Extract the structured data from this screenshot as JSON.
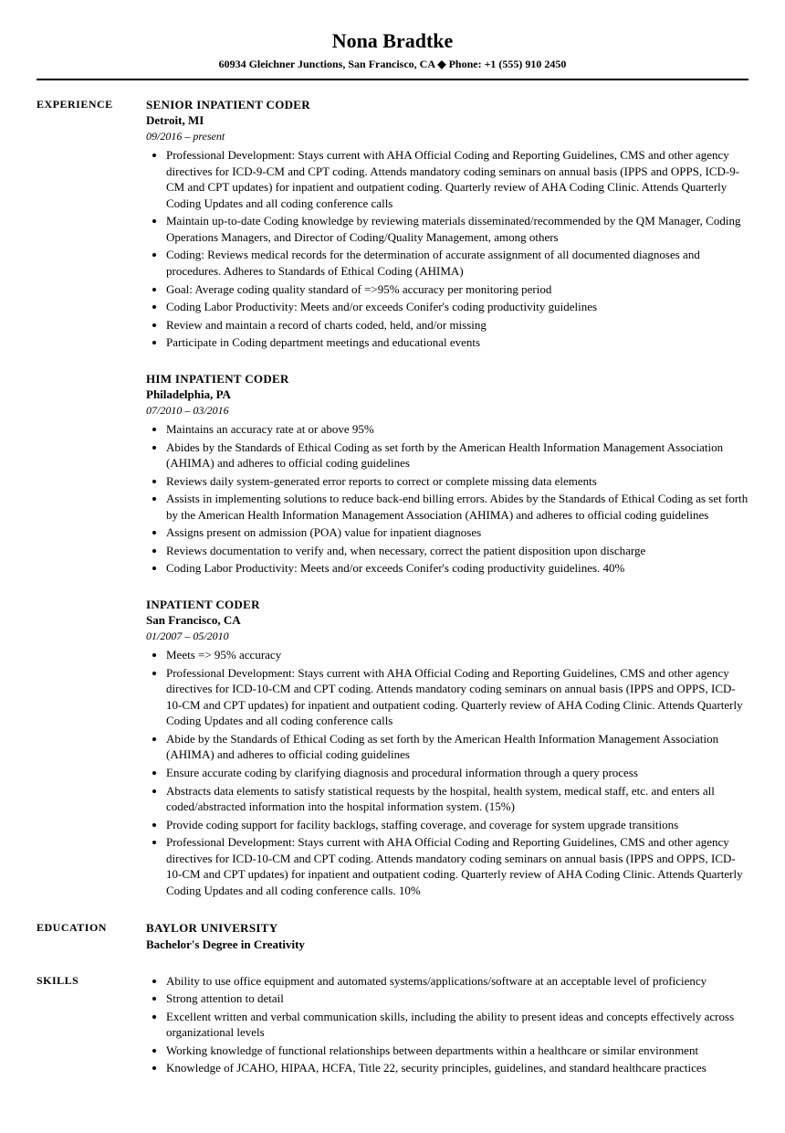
{
  "header": {
    "name": "Nona Bradtke",
    "contact": "60934 Gleichner Junctions, San Francisco, CA  ◆  Phone: +1 (555) 910 2450"
  },
  "sections": {
    "experience_label": "EXPERIENCE",
    "education_label": "EDUCATION",
    "skills_label": "SKILLS"
  },
  "jobs": [
    {
      "title": "SENIOR INPATIENT CODER",
      "location": "Detroit, MI",
      "dates": "09/2016 – present",
      "bullets": [
        "Professional Development: Stays current with AHA Official Coding and Reporting Guidelines, CMS and other agency directives for ICD-9-CM and CPT coding. Attends mandatory coding seminars on annual basis (IPPS and OPPS, ICD-9-CM and CPT updates) for inpatient and outpatient coding. Quarterly review of AHA Coding Clinic. Attends Quarterly Coding Updates and all coding conference calls",
        "Maintain up-to-date Coding knowledge by reviewing materials disseminated/recommended by the QM Manager, Coding Operations Managers, and Director of Coding/Quality Management, among others",
        "Coding: Reviews medical records for the determination of accurate assignment of all documented diagnoses and procedures. Adheres to Standards of Ethical Coding (AHIMA)",
        "Goal: Average coding quality standard of =>95% accuracy per monitoring period",
        "Coding Labor Productivity: Meets and/or exceeds Conifer's coding productivity guidelines",
        "Review and maintain a record of charts coded, held, and/or missing",
        "Participate in Coding department meetings and educational events"
      ]
    },
    {
      "title": "HIM INPATIENT CODER",
      "location": "Philadelphia, PA",
      "dates": "07/2010 – 03/2016",
      "bullets": [
        "Maintains an accuracy rate at or above 95%",
        "Abides by the Standards of Ethical Coding as set forth by the American Health Information Management Association (AHIMA) and adheres to official coding guidelines",
        "Reviews daily system-generated error reports to correct or complete missing data elements",
        "Assists in implementing solutions to reduce back-end billing errors. Abides by the Standards of Ethical Coding as set forth by the American Health Information Management Association (AHIMA) and adheres to official coding guidelines",
        "Assigns present on admission (POA) value for inpatient diagnoses",
        "Reviews documentation to verify and, when necessary, correct the patient disposition upon discharge",
        "Coding Labor Productivity: Meets and/or exceeds Conifer's coding productivity guidelines. 40%"
      ]
    },
    {
      "title": "INPATIENT CODER",
      "location": "San Francisco, CA",
      "dates": "01/2007 – 05/2010",
      "bullets": [
        "Meets => 95% accuracy",
        "Professional Development: Stays current with AHA Official Coding and Reporting Guidelines, CMS and other agency directives for ICD-10-CM and CPT coding. Attends mandatory coding seminars on annual basis (IPPS and OPPS, ICD-10-CM and CPT updates) for inpatient and outpatient coding. Quarterly review of AHA Coding Clinic. Attends Quarterly Coding Updates and all coding conference calls",
        "Abide by the Standards of Ethical Coding as set forth by the American Health Information Management Association (AHIMA) and adheres to official coding guidelines",
        "Ensure accurate coding by clarifying diagnosis and procedural information through a query process",
        "Abstracts data elements to satisfy statistical requests by the hospital, health system, medical staff, etc. and enters all coded/abstracted information into the hospital information system. (15%)",
        "Provide coding support for facility backlogs, staffing coverage, and coverage for system upgrade transitions",
        "Professional Development: Stays current with AHA Official Coding and Reporting Guidelines, CMS and other agency directives for ICD-10-CM and CPT coding. Attends mandatory coding seminars on annual basis (IPPS and OPPS, ICD-10-CM and CPT updates) for inpatient and outpatient coding. Quarterly review of AHA Coding Clinic. Attends Quarterly Coding Updates and all coding conference calls. 10%"
      ]
    }
  ],
  "education": {
    "school": "BAYLOR UNIVERSITY",
    "degree": "Bachelor's Degree in Creativity"
  },
  "skills": [
    "Ability to use office equipment and automated systems/applications/software at an acceptable level of proficiency",
    "Strong attention to detail",
    "Excellent written and verbal communication skills, including the ability to present ideas and concepts effectively across organizational levels",
    "Working knowledge of functional relationships between departments within a healthcare or similar environment",
    "Knowledge of JCAHO, HIPAA, HCFA, Title 22, security principles, guidelines, and standard healthcare practices"
  ]
}
